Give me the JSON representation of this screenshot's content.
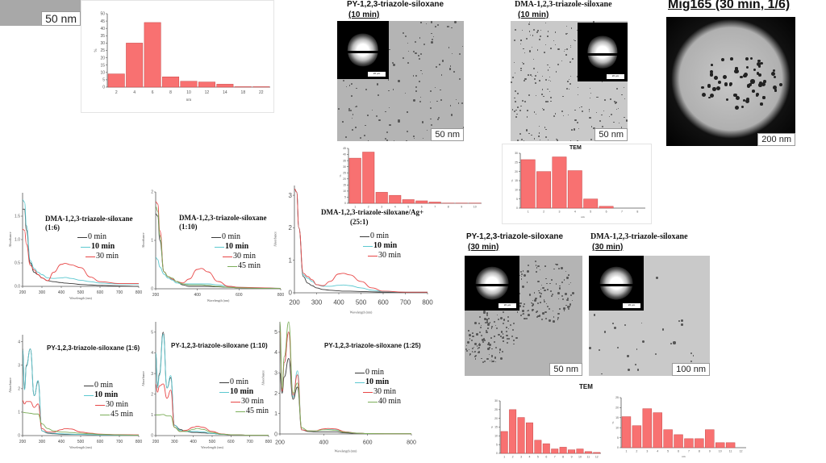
{
  "top_left_scale": "50 nm",
  "images": [
    {
      "title": "PY-1,2,3-triazole-siloxane",
      "subtitle": "(10 min)",
      "scale": "50 nm",
      "inset_scale": "20 µm"
    },
    {
      "title": "DMA-1,2,3-triazole-siloxane",
      "subtitle": "(10 min)",
      "scale": "50 nm",
      "inset_scale": "20 µm"
    },
    {
      "title": "Mig165 (30 min, 1/6)",
      "scale": "200 nm"
    },
    {
      "title": "PY-1,2,3-triazole-siloxane",
      "subtitle": "(30 min)",
      "scale": "50 nm",
      "inset_scale": "20 µm"
    },
    {
      "title": "DMA-1,2,3-triazole-siloxane",
      "subtitle": "(30 min)",
      "scale": "100 nm",
      "inset_scale": "20 µm"
    }
  ],
  "tem_labels": [
    "TEM",
    "TEM"
  ],
  "colors": {
    "0 min": "#3a3a3a",
    "10 min": "#5cc8d0",
    "30 min": "#e84646",
    "45 min": "#7cae5a",
    "40 min": "#7cae5a",
    "bar": "#f87171",
    "bar_edge": "#c84848"
  },
  "chart_data": [
    {
      "type": "bar",
      "title": "",
      "xlabel": "nm",
      "ylabel": "%",
      "ylim": [
        0,
        50
      ],
      "yticks": [
        0,
        5,
        10,
        15,
        20,
        25,
        30,
        35,
        40,
        45,
        50
      ],
      "categories": [
        "2",
        "4",
        "6",
        "8",
        "10",
        "12",
        "14",
        "18",
        "22"
      ],
      "values": [
        9,
        30,
        44,
        7,
        4,
        3.5,
        2,
        0.3,
        0.3
      ]
    },
    {
      "type": "bar",
      "title": "",
      "xlabel": "",
      "ylabel": "%",
      "ylim": [
        0,
        45
      ],
      "yticks": [
        0,
        5,
        10,
        15,
        20,
        25,
        30,
        35,
        40,
        45
      ],
      "categories": [
        "1",
        "2",
        "3",
        "4",
        "5",
        "6",
        "7",
        "8",
        "9",
        "10"
      ],
      "values": [
        37,
        42,
        9,
        6.5,
        3,
        2,
        1,
        0.2,
        0.2,
        0.2
      ]
    },
    {
      "type": "bar",
      "title": "TEM",
      "xlabel": "nm",
      "ylabel": "%",
      "ylim": [
        0,
        30
      ],
      "yticks": [
        0,
        5,
        10,
        15,
        20,
        25,
        30
      ],
      "categories": [
        "1",
        "2",
        "3",
        "4",
        "5",
        "6",
        "7",
        "8"
      ],
      "values": [
        26.5,
        20,
        28,
        20.5,
        5,
        1,
        0,
        0
      ]
    },
    {
      "type": "bar",
      "title": "",
      "xlabel": "",
      "ylabel": "%",
      "ylim": [
        0,
        30
      ],
      "yticks": [
        0,
        5,
        10,
        15,
        20,
        25,
        30
      ],
      "categories": [
        "1",
        "2",
        "3",
        "4",
        "5",
        "6",
        "7",
        "8",
        "9",
        "10",
        "11",
        "12"
      ],
      "values": [
        12.5,
        25,
        20.5,
        17.5,
        7.5,
        5.5,
        2.5,
        3.5,
        2,
        2.5,
        1,
        0.5
      ]
    },
    {
      "type": "bar",
      "title": "",
      "xlabel": "nm",
      "ylabel": "%",
      "ylim": [
        0,
        25
      ],
      "yticks": [
        0,
        5,
        10,
        15,
        20,
        25
      ],
      "categories": [
        "1",
        "2",
        "3",
        "4",
        "5",
        "6",
        "7",
        "8",
        "9",
        "10",
        "11",
        "12"
      ],
      "values": [
        15.5,
        11,
        19.5,
        17.5,
        9,
        6.5,
        4.5,
        4.5,
        9,
        2.5,
        2.5,
        0
      ]
    },
    {
      "type": "line",
      "title": "DMA-1,2,3-triazole-siloxane",
      "subtitle": "(1:6)",
      "xlabel": "Wavelength (nm)",
      "ylabel": "Absorbance",
      "xlim": [
        200,
        800
      ],
      "ylim": [
        0,
        2
      ],
      "xticks": [
        200,
        300,
        400,
        500,
        600,
        700,
        800
      ],
      "yticks": [
        0,
        0.5,
        1.0,
        1.5
      ],
      "ytick_labels": [
        "0.0",
        "0.5",
        "1.0",
        "1.5"
      ],
      "x": [
        200,
        210,
        220,
        240,
        260,
        280,
        300,
        330,
        360,
        400,
        420,
        450,
        500,
        550,
        600,
        700,
        800
      ],
      "series": [
        {
          "name": "0 min",
          "values": [
            1.65,
            1.65,
            1.2,
            0.5,
            0.3,
            0.25,
            0.18,
            0.12,
            0.1,
            0.08,
            0.07,
            0.06,
            0.04,
            0.03,
            0.02,
            0.01,
            0
          ]
        },
        {
          "name": "10 min",
          "values": [
            1.85,
            1.8,
            1.3,
            0.55,
            0.38,
            0.3,
            0.25,
            0.18,
            0.17,
            0.18,
            0.19,
            0.17,
            0.13,
            0.1,
            0.07,
            0.05,
            0.05
          ]
        },
        {
          "name": "30 min",
          "values": [
            1.22,
            1.2,
            0.9,
            0.45,
            0.35,
            0.25,
            0.18,
            0.12,
            0.3,
            0.47,
            0.49,
            0.46,
            0.4,
            0.2,
            0.1,
            0.06,
            0.06
          ]
        }
      ]
    },
    {
      "type": "line",
      "title": "DMA-1,2,3-triazole-siloxane",
      "subtitle": "(1:10)",
      "xlabel": "Wavelength (nm)",
      "ylabel": "Absorbance",
      "xlim": [
        200,
        800
      ],
      "ylim": [
        0,
        2
      ],
      "xticks": [
        200,
        400,
        600,
        800
      ],
      "yticks": [
        0,
        1,
        2
      ],
      "ytick_labels": [
        "0",
        "1",
        "2"
      ],
      "x": [
        200,
        210,
        220,
        240,
        260,
        280,
        300,
        330,
        360,
        400,
        420,
        450,
        500,
        550,
        600,
        700,
        800
      ],
      "series": [
        {
          "name": "0 min",
          "values": [
            1.55,
            1.5,
            1.0,
            0.35,
            0.25,
            0.2,
            0.15,
            0.08,
            0.05,
            0.05,
            0.05,
            0.05,
            0.04,
            0.03,
            0.02,
            0.01,
            0.01
          ]
        },
        {
          "name": "10 min",
          "values": [
            0.65,
            0.6,
            0.45,
            0.3,
            0.22,
            0.18,
            0.12,
            0.1,
            0.1,
            0.1,
            0.1,
            0.1,
            0.08,
            0.05,
            0.03,
            0.02,
            0.01
          ]
        },
        {
          "name": "30 min",
          "values": [
            1.8,
            1.75,
            1.2,
            0.35,
            0.25,
            0.2,
            0.15,
            0.12,
            0.2,
            0.4,
            0.42,
            0.35,
            0.15,
            0.05,
            0.03,
            0.02,
            0.01
          ]
        },
        {
          "name": "45 min",
          "values": [
            1.7,
            1.6,
            1.1,
            0.35,
            0.25,
            0.22,
            0.15,
            0.1,
            0.08,
            0.08,
            0.08,
            0.07,
            0.05,
            0.03,
            0.02,
            0.01,
            0.01
          ]
        }
      ]
    },
    {
      "type": "line",
      "title": "DMA-1,2,3-triazole-siloxane/Ag+",
      "subtitle": "(25:1)",
      "xlabel": "Wavelength (nm)",
      "ylabel": "Absorbance",
      "xlim": [
        200,
        800
      ],
      "ylim": [
        0,
        3.3
      ],
      "xticks": [
        200,
        300,
        400,
        500,
        600,
        700,
        800
      ],
      "yticks": [
        0,
        1,
        2,
        3
      ],
      "ytick_labels": [
        "0",
        "1",
        "2",
        "3"
      ],
      "x": [
        200,
        210,
        220,
        240,
        260,
        280,
        300,
        330,
        360,
        400,
        420,
        450,
        500,
        550,
        600,
        700,
        800
      ],
      "series": [
        {
          "name": "0 min",
          "values": [
            3.2,
            3.1,
            2.0,
            0.5,
            0.3,
            0.22,
            0.15,
            0.1,
            0.08,
            0.06,
            0.05,
            0.05,
            0.04,
            0.03,
            0.02,
            0.01,
            0.01
          ]
        },
        {
          "name": "10 min",
          "values": [
            3.2,
            3.1,
            2.0,
            0.55,
            0.45,
            0.35,
            0.25,
            0.2,
            0.2,
            0.23,
            0.24,
            0.22,
            0.15,
            0.08,
            0.04,
            0.02,
            0.02
          ]
        },
        {
          "name": "30 min",
          "values": [
            3.2,
            3.1,
            2.0,
            0.6,
            0.5,
            0.4,
            0.25,
            0.22,
            0.35,
            0.58,
            0.6,
            0.55,
            0.35,
            0.15,
            0.05,
            0.02,
            0.02
          ]
        }
      ]
    },
    {
      "type": "line",
      "title": "PY-1,2,3-triazole-siloxane (1:6)",
      "subtitle": "",
      "xlabel": "Wavelength (nm)",
      "ylabel": "Absorbance",
      "xlim": [
        200,
        800
      ],
      "ylim": [
        0,
        4.3
      ],
      "xticks": [
        200,
        300,
        400,
        500,
        600,
        700,
        800
      ],
      "yticks": [
        0,
        1,
        2,
        3,
        4
      ],
      "ytick_labels": [
        "0",
        "1",
        "2",
        "3",
        "4"
      ],
      "x": [
        200,
        210,
        220,
        240,
        260,
        280,
        300,
        330,
        360,
        400,
        420,
        450,
        500,
        550,
        600,
        700,
        800
      ],
      "series": [
        {
          "name": "0 min",
          "values": [
            3.7,
            2.0,
            3.0,
            3.7,
            1.7,
            2.3,
            0.2,
            0.1,
            0.08,
            0.06,
            0.05,
            0.05,
            0.05,
            0.04,
            0.03,
            0.02,
            0.02
          ]
        },
        {
          "name": "10 min",
          "values": [
            3.65,
            1.95,
            2.95,
            3.7,
            1.7,
            2.35,
            0.2,
            0.12,
            0.1,
            0.08,
            0.07,
            0.06,
            0.05,
            0.04,
            0.03,
            0.02,
            0.02
          ]
        },
        {
          "name": "30 min",
          "values": [
            1.5,
            1.35,
            1.45,
            1.45,
            1.2,
            1.35,
            0.3,
            0.15,
            0.15,
            0.25,
            0.3,
            0.28,
            0.15,
            0.1,
            0.06,
            0.04,
            0.03
          ]
        },
        {
          "name": "45 min",
          "values": [
            1.0,
            0.98,
            0.97,
            0.95,
            0.92,
            0.92,
            0.5,
            0.3,
            0.2,
            0.15,
            0.15,
            0.13,
            0.1,
            0.08,
            0.05,
            0.03,
            0.02
          ]
        }
      ]
    },
    {
      "type": "line",
      "title": "PY-1,2,3-triazole-siloxane (1:10)",
      "subtitle": "",
      "xlabel": "Wavelength (nm)",
      "ylabel": "Absorbance",
      "xlim": [
        200,
        800
      ],
      "ylim": [
        0,
        5.5
      ],
      "xticks": [
        200,
        300,
        400,
        500,
        600,
        700,
        800
      ],
      "yticks": [
        0,
        1,
        2,
        3,
        4,
        5
      ],
      "ytick_labels": [
        "0",
        "1",
        "2",
        "3",
        "4",
        "5"
      ],
      "x": [
        200,
        210,
        220,
        240,
        260,
        280,
        300,
        330,
        360,
        400,
        420,
        450,
        500,
        550,
        600,
        700,
        800
      ],
      "series": [
        {
          "name": "0 min",
          "values": [
            4.0,
            2.4,
            3.0,
            5.0,
            2.3,
            2.8,
            0.5,
            0.3,
            0.2,
            0.15,
            0.15,
            0.13,
            0.1,
            0.06,
            0.04,
            0.02,
            0.02
          ]
        },
        {
          "name": "10 min",
          "values": [
            4.0,
            2.3,
            2.9,
            4.9,
            2.3,
            2.9,
            0.5,
            0.25,
            0.2,
            0.2,
            0.2,
            0.18,
            0.1,
            0.06,
            0.04,
            0.02,
            0.02
          ]
        },
        {
          "name": "30 min",
          "values": [
            2.5,
            2.1,
            2.4,
            2.5,
            1.8,
            2.2,
            0.4,
            0.2,
            0.25,
            0.4,
            0.45,
            0.4,
            0.2,
            0.08,
            0.04,
            0.02,
            0.02
          ]
        },
        {
          "name": "45 min",
          "values": [
            1.0,
            1.0,
            1.0,
            1.02,
            0.95,
            0.95,
            0.4,
            0.2,
            0.2,
            0.3,
            0.35,
            0.3,
            0.15,
            0.07,
            0.04,
            0.02,
            0.02
          ]
        }
      ]
    },
    {
      "type": "line",
      "title": "PY-1,2,3-triazole-siloxane (1:25)",
      "subtitle": "",
      "xlabel": "Wavelength (nm)",
      "ylabel": "Absorbance",
      "xlim": [
        200,
        800
      ],
      "ylim": [
        0,
        5.5
      ],
      "xticks": [
        200,
        400,
        600,
        800
      ],
      "yticks": [
        0,
        1,
        2,
        3,
        4,
        5
      ],
      "ytick_labels": [
        "0",
        "1",
        "2",
        "3",
        "4",
        "5"
      ],
      "x": [
        200,
        210,
        220,
        240,
        260,
        280,
        300,
        330,
        360,
        400,
        420,
        450,
        500,
        550,
        600,
        700,
        800
      ],
      "series": [
        {
          "name": "0 min",
          "values": [
            3.0,
            2.0,
            2.8,
            3.7,
            1.7,
            2.3,
            0.2,
            0.12,
            0.1,
            0.1,
            0.1,
            0.1,
            0.05,
            0.03,
            0.02,
            0.01,
            0.01
          ]
        },
        {
          "name": "10 min",
          "values": [
            5.0,
            2.2,
            3.5,
            5.0,
            1.8,
            3.1,
            0.2,
            0.15,
            0.15,
            0.2,
            0.22,
            0.2,
            0.1,
            0.04,
            0.02,
            0.01,
            0.01
          ]
        },
        {
          "name": "30 min",
          "values": [
            5.0,
            2.1,
            3.5,
            5.0,
            1.9,
            2.9,
            0.2,
            0.15,
            0.15,
            0.25,
            0.27,
            0.25,
            0.1,
            0.04,
            0.02,
            0.01,
            0.01
          ]
        },
        {
          "name": "40 min",
          "values": [
            5.5,
            2.2,
            3.8,
            5.5,
            2.0,
            2.5,
            0.3,
            0.15,
            0.15,
            0.2,
            0.2,
            0.18,
            0.08,
            0.04,
            0.02,
            0.01,
            0.01
          ]
        }
      ]
    }
  ]
}
